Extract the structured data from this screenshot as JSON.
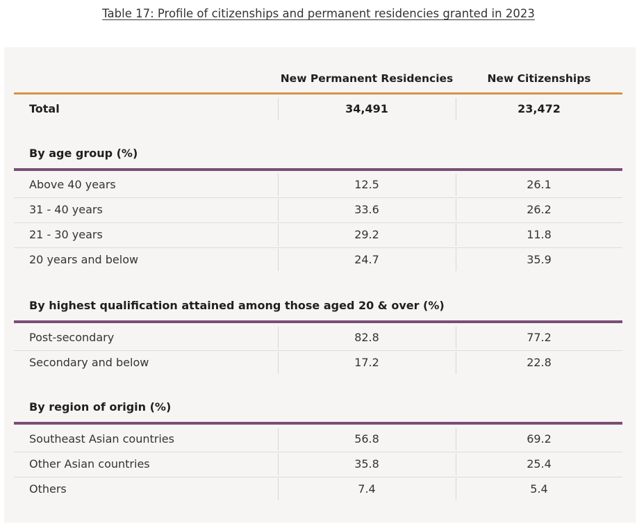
{
  "caption": "Table 17: Profile of citizenships and permanent residencies granted in 2023",
  "columns": {
    "pr": "New Permanent Residencies",
    "citizenship": "New Citizenships"
  },
  "total": {
    "label": "Total",
    "pr": "34,491",
    "citizenship": "23,472"
  },
  "sections": [
    {
      "title": "By age group (%)",
      "rows": [
        {
          "label": "Above 40 years",
          "pr": "12.5",
          "citizenship": "26.1"
        },
        {
          "label": "31 - 40 years",
          "pr": "33.6",
          "citizenship": "26.2"
        },
        {
          "label": "21 - 30 years",
          "pr": "29.2",
          "citizenship": "11.8"
        },
        {
          "label": "20 years and below",
          "pr": "24.7",
          "citizenship": "35.9"
        }
      ]
    },
    {
      "title": "By highest qualification attained among those aged 20 & over (%)",
      "rows": [
        {
          "label": "Post-secondary",
          "pr": "82.8",
          "citizenship": "77.2"
        },
        {
          "label": "Secondary and below",
          "pr": "17.2",
          "citizenship": "22.8"
        }
      ]
    },
    {
      "title": "By region of origin (%)",
      "rows": [
        {
          "label": "Southeast Asian countries",
          "pr": "56.8",
          "citizenship": "69.2"
        },
        {
          "label": "Other Asian countries",
          "pr": "35.8",
          "citizenship": "25.4"
        },
        {
          "label": "Others",
          "pr": "7.4",
          "citizenship": "5.4"
        }
      ]
    }
  ],
  "colors": {
    "header_rule": "#d4924a",
    "section_rule": "#7b4d78",
    "panel_background": "#f6f5f3"
  }
}
